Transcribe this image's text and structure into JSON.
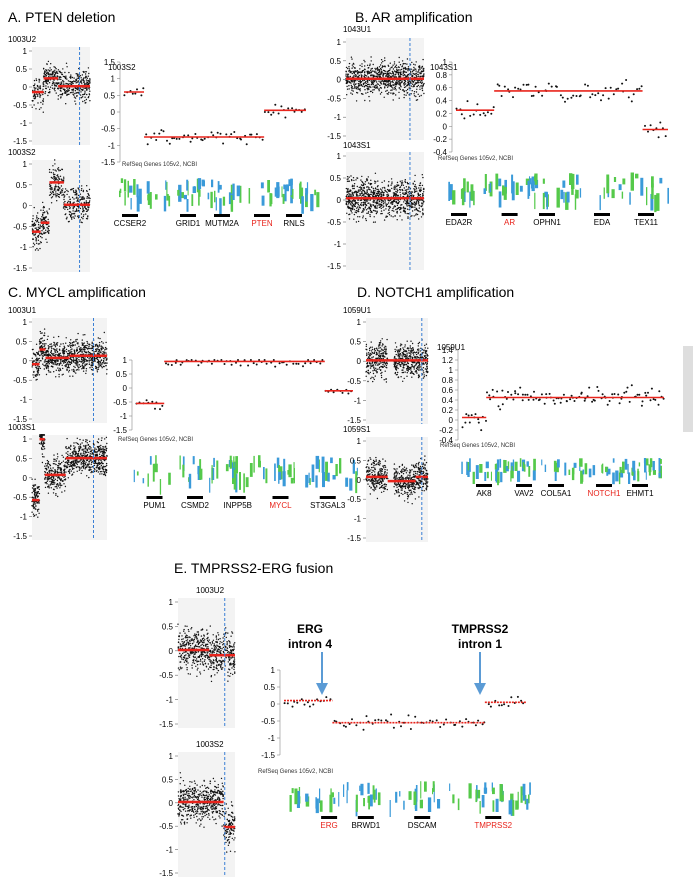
{
  "colors": {
    "segment": "#e8241c",
    "dot": "#111111",
    "blue_dash": "#3a7fd5",
    "arrow": "#5b9bd5",
    "gene_red": "#e8241c",
    "bg_panel": "#f3f3f3",
    "track_green": "#55c94a",
    "track_blue": "#3a9ad9"
  },
  "ref_label": "RefSeq Genes 105v2, NCBI",
  "panels": [
    {
      "id": "A",
      "title": "A. PTEN deletion",
      "sample_top": "1003U2",
      "sample_bottom": "1003S2",
      "zoom_sample": "1003S2",
      "y_ticks_left": [
        "1",
        "0.5",
        "0",
        "-0.5",
        "-1",
        "-1.5"
      ],
      "y_ticks_zoom": [
        "1.5",
        "1",
        "0.5",
        "0",
        "-0.5",
        "-1",
        "-1.5"
      ],
      "genes": [
        {
          "name": "CCSER2",
          "red": false
        },
        {
          "name": "GRID1",
          "red": false
        },
        {
          "name": "MUTM2A",
          "red": false
        },
        {
          "name": "PTEN",
          "red": true
        },
        {
          "name": "RNLS",
          "red": false
        }
      ],
      "zoom_segments": [
        {
          "from": 0,
          "to": 0.11,
          "y": 0.6
        },
        {
          "from": 0.11,
          "to": 0.77,
          "y": -0.75
        },
        {
          "from": 0.77,
          "to": 1,
          "y": 0.05
        }
      ]
    },
    {
      "id": "B",
      "title": "B. AR amplification",
      "sample_top": "1043U1",
      "sample_bottom": "1043S1",
      "zoom_sample": "1043S1",
      "y_ticks_left": [
        "1",
        "0.5",
        "0",
        "-0.5",
        "-1",
        "-1.5"
      ],
      "y_ticks_zoom": [
        "1",
        "0.8",
        "0.6",
        "0.4",
        "0.2",
        "0",
        "-0.2",
        "-0.4"
      ],
      "genes": [
        {
          "name": "EDA2R",
          "red": false
        },
        {
          "name": "AR",
          "red": true
        },
        {
          "name": "OPHN1",
          "red": false
        },
        {
          "name": "EDA",
          "red": false
        },
        {
          "name": "TEX11",
          "red": false
        }
      ],
      "zoom_segments": [
        {
          "from": 0,
          "to": 0.18,
          "y": 0.25
        },
        {
          "from": 0.18,
          "to": 0.88,
          "y": 0.55
        },
        {
          "from": 0.88,
          "to": 1,
          "y": -0.05
        }
      ]
    },
    {
      "id": "C",
      "title": "C. MYCL amplification",
      "sample_top": "1003U1",
      "sample_bottom": "1003S1",
      "zoom_sample": "",
      "y_ticks_left": [
        "1",
        "0.5",
        "0",
        "-0.5",
        "-1",
        "-1.5"
      ],
      "y_ticks_zoom": [
        "1",
        "0.5",
        "0",
        "-0.5",
        "-1",
        "-1.5"
      ],
      "genes": [
        {
          "name": "PUM1",
          "red": false
        },
        {
          "name": "CSMD2",
          "red": false
        },
        {
          "name": "INPP5B",
          "red": false
        },
        {
          "name": "MYCL",
          "red": true
        },
        {
          "name": "ST3GAL3",
          "red": false
        }
      ],
      "zoom_segments": [
        {
          "from": 0,
          "to": 0.13,
          "y": -0.55
        },
        {
          "from": 0.13,
          "to": 0.87,
          "y": 0.95
        },
        {
          "from": 0.87,
          "to": 1,
          "y": -0.1
        }
      ]
    },
    {
      "id": "D",
      "title": "D. NOTCH1  amplification",
      "sample_top": "1059U1",
      "sample_bottom": "1059S1",
      "zoom_sample": "1059U1",
      "y_ticks_left": [
        "1",
        "0.5",
        "0",
        "-0.5",
        "-1",
        "-1.5"
      ],
      "y_ticks_zoom": [
        "1.4",
        "1.2",
        "1",
        "0.8",
        "0.6",
        "0.4",
        "0.2",
        "0",
        "-0.2",
        "-0.4"
      ],
      "genes": [
        {
          "name": "AK8",
          "red": false
        },
        {
          "name": "VAV2",
          "red": false
        },
        {
          "name": "COL5A1",
          "red": false
        },
        {
          "name": "NOTCH1",
          "red": true
        },
        {
          "name": "EHMT1",
          "red": false
        }
      ],
      "zoom_segments": [
        {
          "from": 0,
          "to": 0.12,
          "y": 0.05
        },
        {
          "from": 0.12,
          "to": 1,
          "y": 0.45
        }
      ]
    },
    {
      "id": "E",
      "title": "E. TMPRSS2-ERG fusion",
      "sample_top": "1003U2",
      "sample_bottom": "1003S2",
      "zoom_sample": "",
      "y_ticks_left": [
        "1",
        "0.5",
        "0",
        "-0.5",
        "-1",
        "-1.5"
      ],
      "y_ticks_zoom": [
        "1",
        "0.5",
        "0",
        "-0.5",
        "-1",
        "-1.5"
      ],
      "genes": [
        {
          "name": "ERG",
          "red": true
        },
        {
          "name": "BRWD1",
          "red": false
        },
        {
          "name": "DSCAM",
          "red": false
        },
        {
          "name": "TMPRSS2",
          "red": true
        }
      ],
      "arrow_labels": [
        {
          "line1": "ERG",
          "line2": "intron 4"
        },
        {
          "line1": "TMPRSS2",
          "line2": "intron 1"
        }
      ],
      "zoom_segments": [
        {
          "from": 0,
          "to": 0.2,
          "y": 0.1
        },
        {
          "from": 0.2,
          "to": 0.83,
          "y": -0.55
        },
        {
          "from": 0.83,
          "to": 1,
          "y": 0.05
        }
      ]
    }
  ]
}
